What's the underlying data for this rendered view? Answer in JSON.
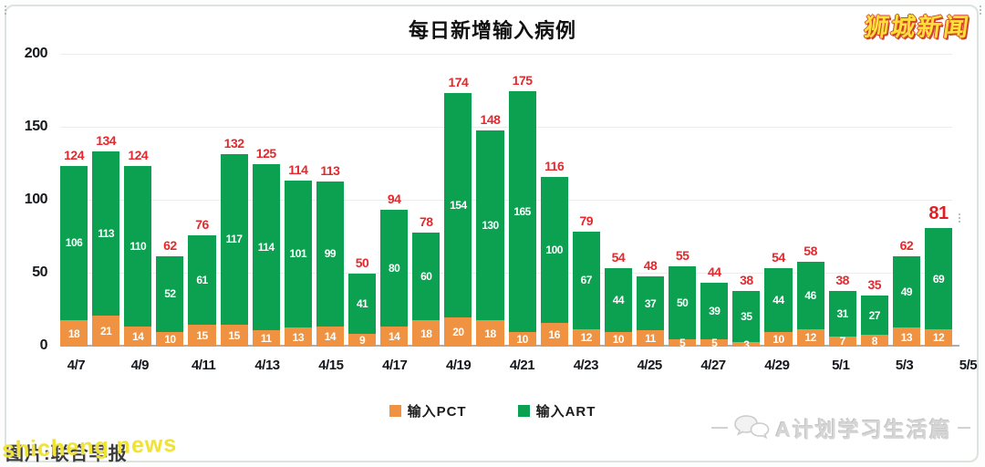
{
  "title": "每日新增输入病例",
  "watermarks": {
    "top_right": "狮城新闻",
    "bottom_left_caption": "图片:联合早报",
    "bottom_left_overlay": "shicheng news",
    "bottom_right": "A计划学习生活篇"
  },
  "colors": {
    "pct_orange": "#ef9342",
    "art_green": "#0ba150",
    "total_red": "#e22a2e"
  },
  "chart_data": {
    "type": "bar",
    "stacked": true,
    "title": "每日新增输入病例",
    "xlabel": "",
    "ylabel": "",
    "ylim": [
      0,
      200
    ],
    "yticks": [
      0,
      50,
      100,
      150,
      200
    ],
    "grid": true,
    "legend_position": "bottom",
    "x_tick_labels": [
      "4/7",
      "4/9",
      "4/11",
      "4/13",
      "4/15",
      "4/17",
      "4/19",
      "4/21",
      "4/23",
      "4/25",
      "4/27",
      "4/29",
      "5/1",
      "5/3",
      "5/5"
    ],
    "series": [
      {
        "name": "输入PCT",
        "color": "#ef9342",
        "values": [
          18,
          21,
          14,
          10,
          15,
          15,
          11,
          13,
          14,
          9,
          14,
          18,
          20,
          18,
          10,
          16,
          12,
          10,
          11,
          5,
          5,
          3,
          10,
          12,
          7,
          8,
          13,
          12
        ]
      },
      {
        "name": "输入ART",
        "color": "#0ba150",
        "values": [
          106,
          113,
          110,
          52,
          61,
          117,
          114,
          101,
          99,
          41,
          80,
          60,
          154,
          130,
          165,
          100,
          67,
          44,
          37,
          50,
          39,
          35,
          44,
          46,
          31,
          27,
          49,
          69
        ]
      }
    ],
    "totals": [
      124,
      134,
      124,
      62,
      76,
      132,
      125,
      114,
      113,
      50,
      94,
      78,
      174,
      148,
      175,
      116,
      79,
      54,
      48,
      55,
      44,
      38,
      54,
      58,
      38,
      35,
      62,
      81
    ],
    "emphasized_total_index": 27
  }
}
